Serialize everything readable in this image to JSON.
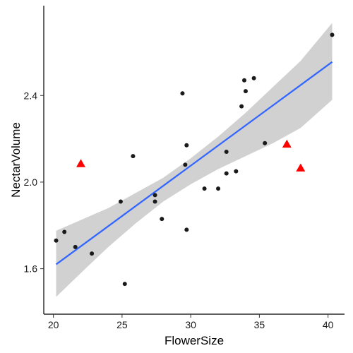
{
  "chart_data": {
    "type": "scatter",
    "xlabel": "FlowerSize",
    "ylabel": "NectarVolume",
    "xlim": [
      19.3,
      41.2
    ],
    "ylim": [
      1.39,
      2.815
    ],
    "x_ticks": [
      20,
      25,
      30,
      35,
      40
    ],
    "y_ticks": [
      1.6,
      2.0,
      2.4
    ],
    "grid": false,
    "legend": "none",
    "colors": {
      "points": "#1a1a1a",
      "outliers": "#ff0000",
      "fit_line": "#3366ff",
      "band": "#cccccc",
      "axis": "#000000"
    },
    "points": [
      {
        "x": 20.2,
        "y": 1.73
      },
      {
        "x": 20.8,
        "y": 1.77
      },
      {
        "x": 21.6,
        "y": 1.7
      },
      {
        "x": 22.8,
        "y": 1.67
      },
      {
        "x": 24.9,
        "y": 1.91
      },
      {
        "x": 25.2,
        "y": 1.53
      },
      {
        "x": 25.8,
        "y": 2.12
      },
      {
        "x": 27.4,
        "y": 1.94
      },
      {
        "x": 27.4,
        "y": 1.91
      },
      {
        "x": 27.9,
        "y": 1.83
      },
      {
        "x": 29.4,
        "y": 2.41
      },
      {
        "x": 29.6,
        "y": 2.08
      },
      {
        "x": 29.7,
        "y": 2.17
      },
      {
        "x": 29.7,
        "y": 1.78
      },
      {
        "x": 31.0,
        "y": 1.97
      },
      {
        "x": 32.0,
        "y": 1.97
      },
      {
        "x": 32.6,
        "y": 2.14
      },
      {
        "x": 32.6,
        "y": 2.04
      },
      {
        "x": 33.3,
        "y": 2.05
      },
      {
        "x": 33.7,
        "y": 2.35
      },
      {
        "x": 33.9,
        "y": 2.47
      },
      {
        "x": 34.0,
        "y": 2.42
      },
      {
        "x": 34.6,
        "y": 2.48
      },
      {
        "x": 35.4,
        "y": 2.18
      },
      {
        "x": 40.3,
        "y": 2.68
      }
    ],
    "outliers": [
      {
        "x": 22.0,
        "y": 2.085
      },
      {
        "x": 37.0,
        "y": 2.175
      },
      {
        "x": 38.0,
        "y": 2.065
      }
    ],
    "fit": {
      "x": [
        20.2,
        40.3
      ],
      "y": [
        1.62,
        2.555
      ]
    },
    "confidence_band": [
      {
        "x": 20.2,
        "lo": 1.47,
        "hi": 1.775
      },
      {
        "x": 22.0,
        "lo": 1.58,
        "hi": 1.825
      },
      {
        "x": 24.0,
        "lo": 1.7,
        "hi": 1.88
      },
      {
        "x": 26.0,
        "lo": 1.81,
        "hi": 1.95
      },
      {
        "x": 28.0,
        "lo": 1.91,
        "hi": 2.02
      },
      {
        "x": 30.0,
        "lo": 1.99,
        "hi": 2.11
      },
      {
        "x": 32.0,
        "lo": 2.06,
        "hi": 2.21
      },
      {
        "x": 34.0,
        "lo": 2.12,
        "hi": 2.32
      },
      {
        "x": 36.0,
        "lo": 2.18,
        "hi": 2.44
      },
      {
        "x": 38.0,
        "lo": 2.25,
        "hi": 2.56
      },
      {
        "x": 40.3,
        "lo": 2.38,
        "hi": 2.735
      }
    ]
  }
}
